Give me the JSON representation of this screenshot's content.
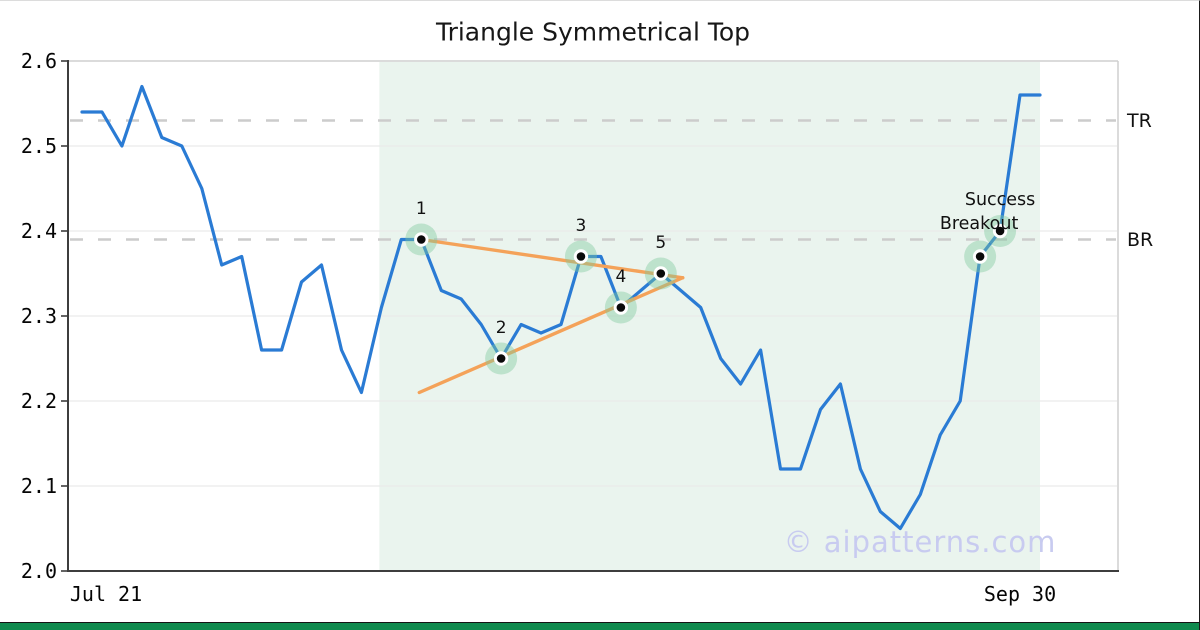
{
  "page": {
    "watermark": "© aipatterns.com",
    "bottom_bar_color": "#0f8a4e"
  },
  "chart_data": {
    "type": "line",
    "title": "Triangle Symmetrical Top",
    "x_start_label": "Jul 21",
    "x_end_label": "Sep 30",
    "ylim": [
      2.0,
      2.6
    ],
    "y_ticks": [
      2.6,
      2.5,
      2.4,
      2.3,
      2.2,
      2.1,
      2.0
    ],
    "grid": "horizontal",
    "series": [
      {
        "name": "price",
        "values": [
          2.54,
          2.54,
          2.5,
          2.57,
          2.51,
          2.5,
          2.45,
          2.36,
          2.37,
          2.26,
          2.26,
          2.34,
          2.36,
          2.26,
          2.21,
          2.31,
          2.39,
          2.39,
          2.33,
          2.32,
          2.29,
          2.25,
          2.29,
          2.28,
          2.29,
          2.37,
          2.37,
          2.31,
          2.33,
          2.35,
          2.33,
          2.31,
          2.25,
          2.22,
          2.26,
          2.12,
          2.12,
          2.19,
          2.22,
          2.12,
          2.07,
          2.05,
          2.09,
          2.16,
          2.2,
          2.37,
          2.4,
          2.56,
          2.56
        ]
      }
    ],
    "level_lines": [
      {
        "label": "TR",
        "value": 2.53
      },
      {
        "label": "BR",
        "value": 2.39
      }
    ],
    "pattern_points": [
      {
        "label": "1",
        "index": 17,
        "value": 2.39
      },
      {
        "label": "2",
        "index": 21,
        "value": 2.25
      },
      {
        "label": "3",
        "index": 25,
        "value": 2.37
      },
      {
        "label": "4",
        "index": 27,
        "value": 2.31
      },
      {
        "label": "5",
        "index": 29,
        "value": 2.35
      }
    ],
    "breakout_points": [
      {
        "name": "success",
        "index": 45,
        "value": 2.37
      },
      {
        "name": "breakout",
        "index": 46,
        "value": 2.4
      }
    ],
    "annotation": {
      "line1": "Success",
      "line2": "Breakout"
    },
    "trendlines": [
      {
        "name": "upper",
        "from": {
          "index": 17.0,
          "value": 2.39
        },
        "to": {
          "index": 30.1,
          "value": 2.345
        }
      },
      {
        "name": "lower",
        "from": {
          "index": 16.9,
          "value": 2.21
        },
        "to": {
          "index": 30.1,
          "value": 2.345
        }
      }
    ],
    "pattern_zone": {
      "from_index": 14.9,
      "to_index": 48
    },
    "colors": {
      "line": "#2a7bd4",
      "trendline": "#f4a259",
      "marker_halo": "#7fc79e",
      "zone": "#eaf4ee",
      "dashed": "#cccccc",
      "grid": "#e9e9e9",
      "spine_dark": "#3d3d3d",
      "spine_light": "#cfcfcf",
      "watermark": "#c8cbf0"
    }
  }
}
